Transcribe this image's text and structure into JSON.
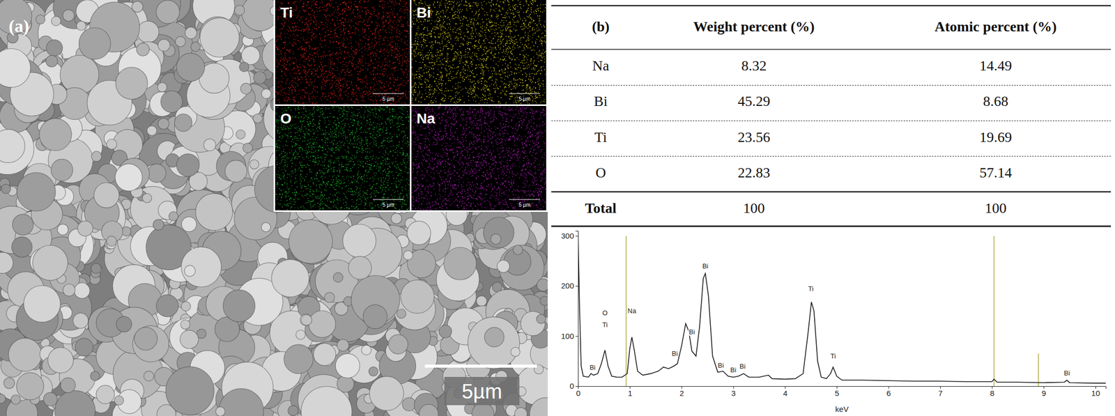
{
  "panel_a": {
    "label": "(a)",
    "scale_bar": "5µm",
    "maps": [
      {
        "element": "Ti",
        "color": "#e3231c",
        "scale_bar": "5 µm"
      },
      {
        "element": "Bi",
        "color": "#e8dc1a",
        "scale_bar": "5 µm"
      },
      {
        "element": "O",
        "color": "#1fbf2a",
        "scale_bar": "5 µm"
      },
      {
        "element": "Na",
        "color": "#c020c8",
        "scale_bar": "5 µm"
      }
    ]
  },
  "panel_b": {
    "label": "(b)",
    "table": {
      "columns": [
        "Weight percent (%)",
        "Atomic percent (%)"
      ],
      "rows": [
        [
          "Na",
          "8.32",
          "14.49"
        ],
        [
          "Bi",
          "45.29",
          "8.68"
        ],
        [
          "Ti",
          "23.56",
          "19.69"
        ],
        [
          "O",
          "22.83",
          "57.14"
        ]
      ],
      "total": [
        "Total",
        "100",
        "100"
      ]
    }
  },
  "chart_data": {
    "type": "line",
    "x_label": "keV",
    "x": [
      0,
      0.03,
      0.06,
      0.1,
      0.2,
      0.25,
      0.3,
      0.38,
      0.45,
      0.52,
      0.58,
      0.65,
      0.75,
      0.85,
      0.95,
      1.0,
      1.04,
      1.09,
      1.15,
      1.25,
      1.4,
      1.55,
      1.65,
      1.75,
      1.85,
      1.92,
      2.0,
      2.08,
      2.14,
      2.2,
      2.28,
      2.35,
      2.42,
      2.46,
      2.52,
      2.6,
      2.7,
      2.8,
      2.9,
      3.0,
      3.1,
      3.2,
      3.3,
      3.5,
      3.68,
      3.75,
      4.0,
      4.2,
      4.35,
      4.45,
      4.51,
      4.56,
      4.63,
      4.7,
      4.8,
      4.88,
      4.93,
      5.0,
      5.1,
      5.5,
      6.0,
      6.5,
      7.0,
      7.5,
      8.0,
      8.04,
      8.1,
      8.5,
      9.0,
      9.4,
      9.45,
      9.5,
      10.0,
      10.2
    ],
    "series": [
      {
        "color": "#1a1a1a",
        "values": [
          305,
          150,
          40,
          20,
          18,
          25,
          22,
          25,
          45,
          72,
          40,
          20,
          18,
          18,
          25,
          75,
          98,
          70,
          30,
          22,
          25,
          30,
          38,
          35,
          40,
          45,
          80,
          125,
          110,
          70,
          60,
          120,
          215,
          225,
          180,
          60,
          28,
          30,
          20,
          18,
          20,
          25,
          18,
          18,
          22,
          15,
          14,
          15,
          25,
          110,
          168,
          150,
          50,
          18,
          15,
          25,
          38,
          20,
          12,
          12,
          11,
          10,
          10,
          9,
          9,
          14,
          8,
          8,
          7,
          8,
          12,
          7,
          6,
          6
        ]
      }
    ],
    "xlim": [
      0,
      10.2
    ],
    "ylim": [
      0,
      310
    ],
    "xticks": [
      0,
      1,
      2,
      3,
      4,
      5,
      6,
      7,
      8,
      9,
      10
    ],
    "yticks": [
      0,
      100,
      200,
      300
    ],
    "grid": false,
    "annotations": [
      {
        "text": "Bi",
        "x": 0.28,
        "y": 33
      },
      {
        "text": "O",
        "x": 0.52,
        "y": 142
      },
      {
        "text": "Ti",
        "x": 0.52,
        "y": 118
      },
      {
        "text": "Na",
        "x": 1.04,
        "y": 146
      },
      {
        "text": "Bi",
        "x": 1.87,
        "y": 61
      },
      {
        "text": "Bi",
        "x": 2.2,
        "y": 104
      },
      {
        "text": "Bi",
        "x": 2.46,
        "y": 235
      },
      {
        "text": "Bi",
        "x": 2.76,
        "y": 37
      },
      {
        "text": "Bi",
        "x": 3.0,
        "y": 28
      },
      {
        "text": "Bi",
        "x": 3.18,
        "y": 35
      },
      {
        "text": "Ti",
        "x": 4.5,
        "y": 190
      },
      {
        "text": "Ti",
        "x": 4.93,
        "y": 55
      },
      {
        "text": "Bi",
        "x": 9.45,
        "y": 22
      }
    ],
    "reference_lines": {
      "color": "#bdbd6a",
      "x": [
        0.93,
        8.04,
        8.9
      ],
      "heights": [
        300,
        300,
        65
      ]
    }
  }
}
